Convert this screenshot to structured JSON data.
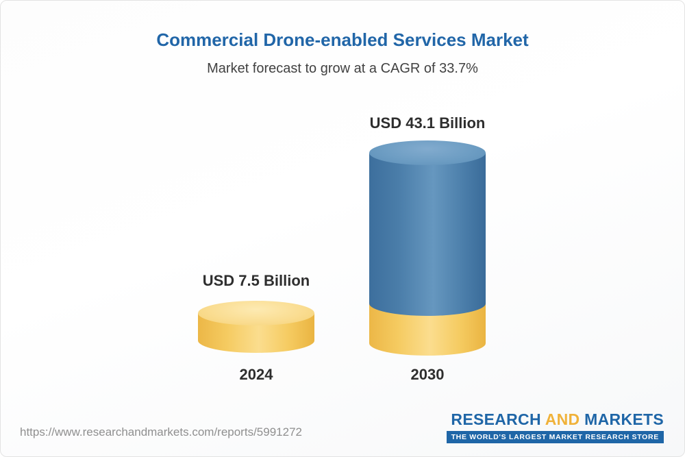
{
  "chart_data": {
    "type": "bar",
    "title": "Commercial Drone-enabled Services Market",
    "subtitle": "Market forecast to grow at a CAGR of 33.7%",
    "categories": [
      "2024",
      "2030"
    ],
    "values": [
      7.5,
      43.1
    ],
    "unit": "USD Billion",
    "value_labels": [
      "USD 7.5 Billion",
      "USD 43.1 Billion"
    ],
    "cagr_percent": 33.7,
    "bar_colors": [
      "#F5CB61",
      "#4A7DA9"
    ],
    "bar_2030_base_segment_color": "#F5CB61",
    "bar_style": "3d-cylinder",
    "legend": "none",
    "grid": false,
    "title_color": "#2166A8"
  },
  "footer": {
    "url": "https://www.researchandmarkets.com/reports/5991272",
    "logo": {
      "research": "RESEARCH",
      "and": "AND",
      "markets": "MARKETS",
      "tagline": "THE WORLD'S LARGEST MARKET RESEARCH STORE",
      "blue": "#1F66A7",
      "gold": "#F0B23A"
    }
  }
}
